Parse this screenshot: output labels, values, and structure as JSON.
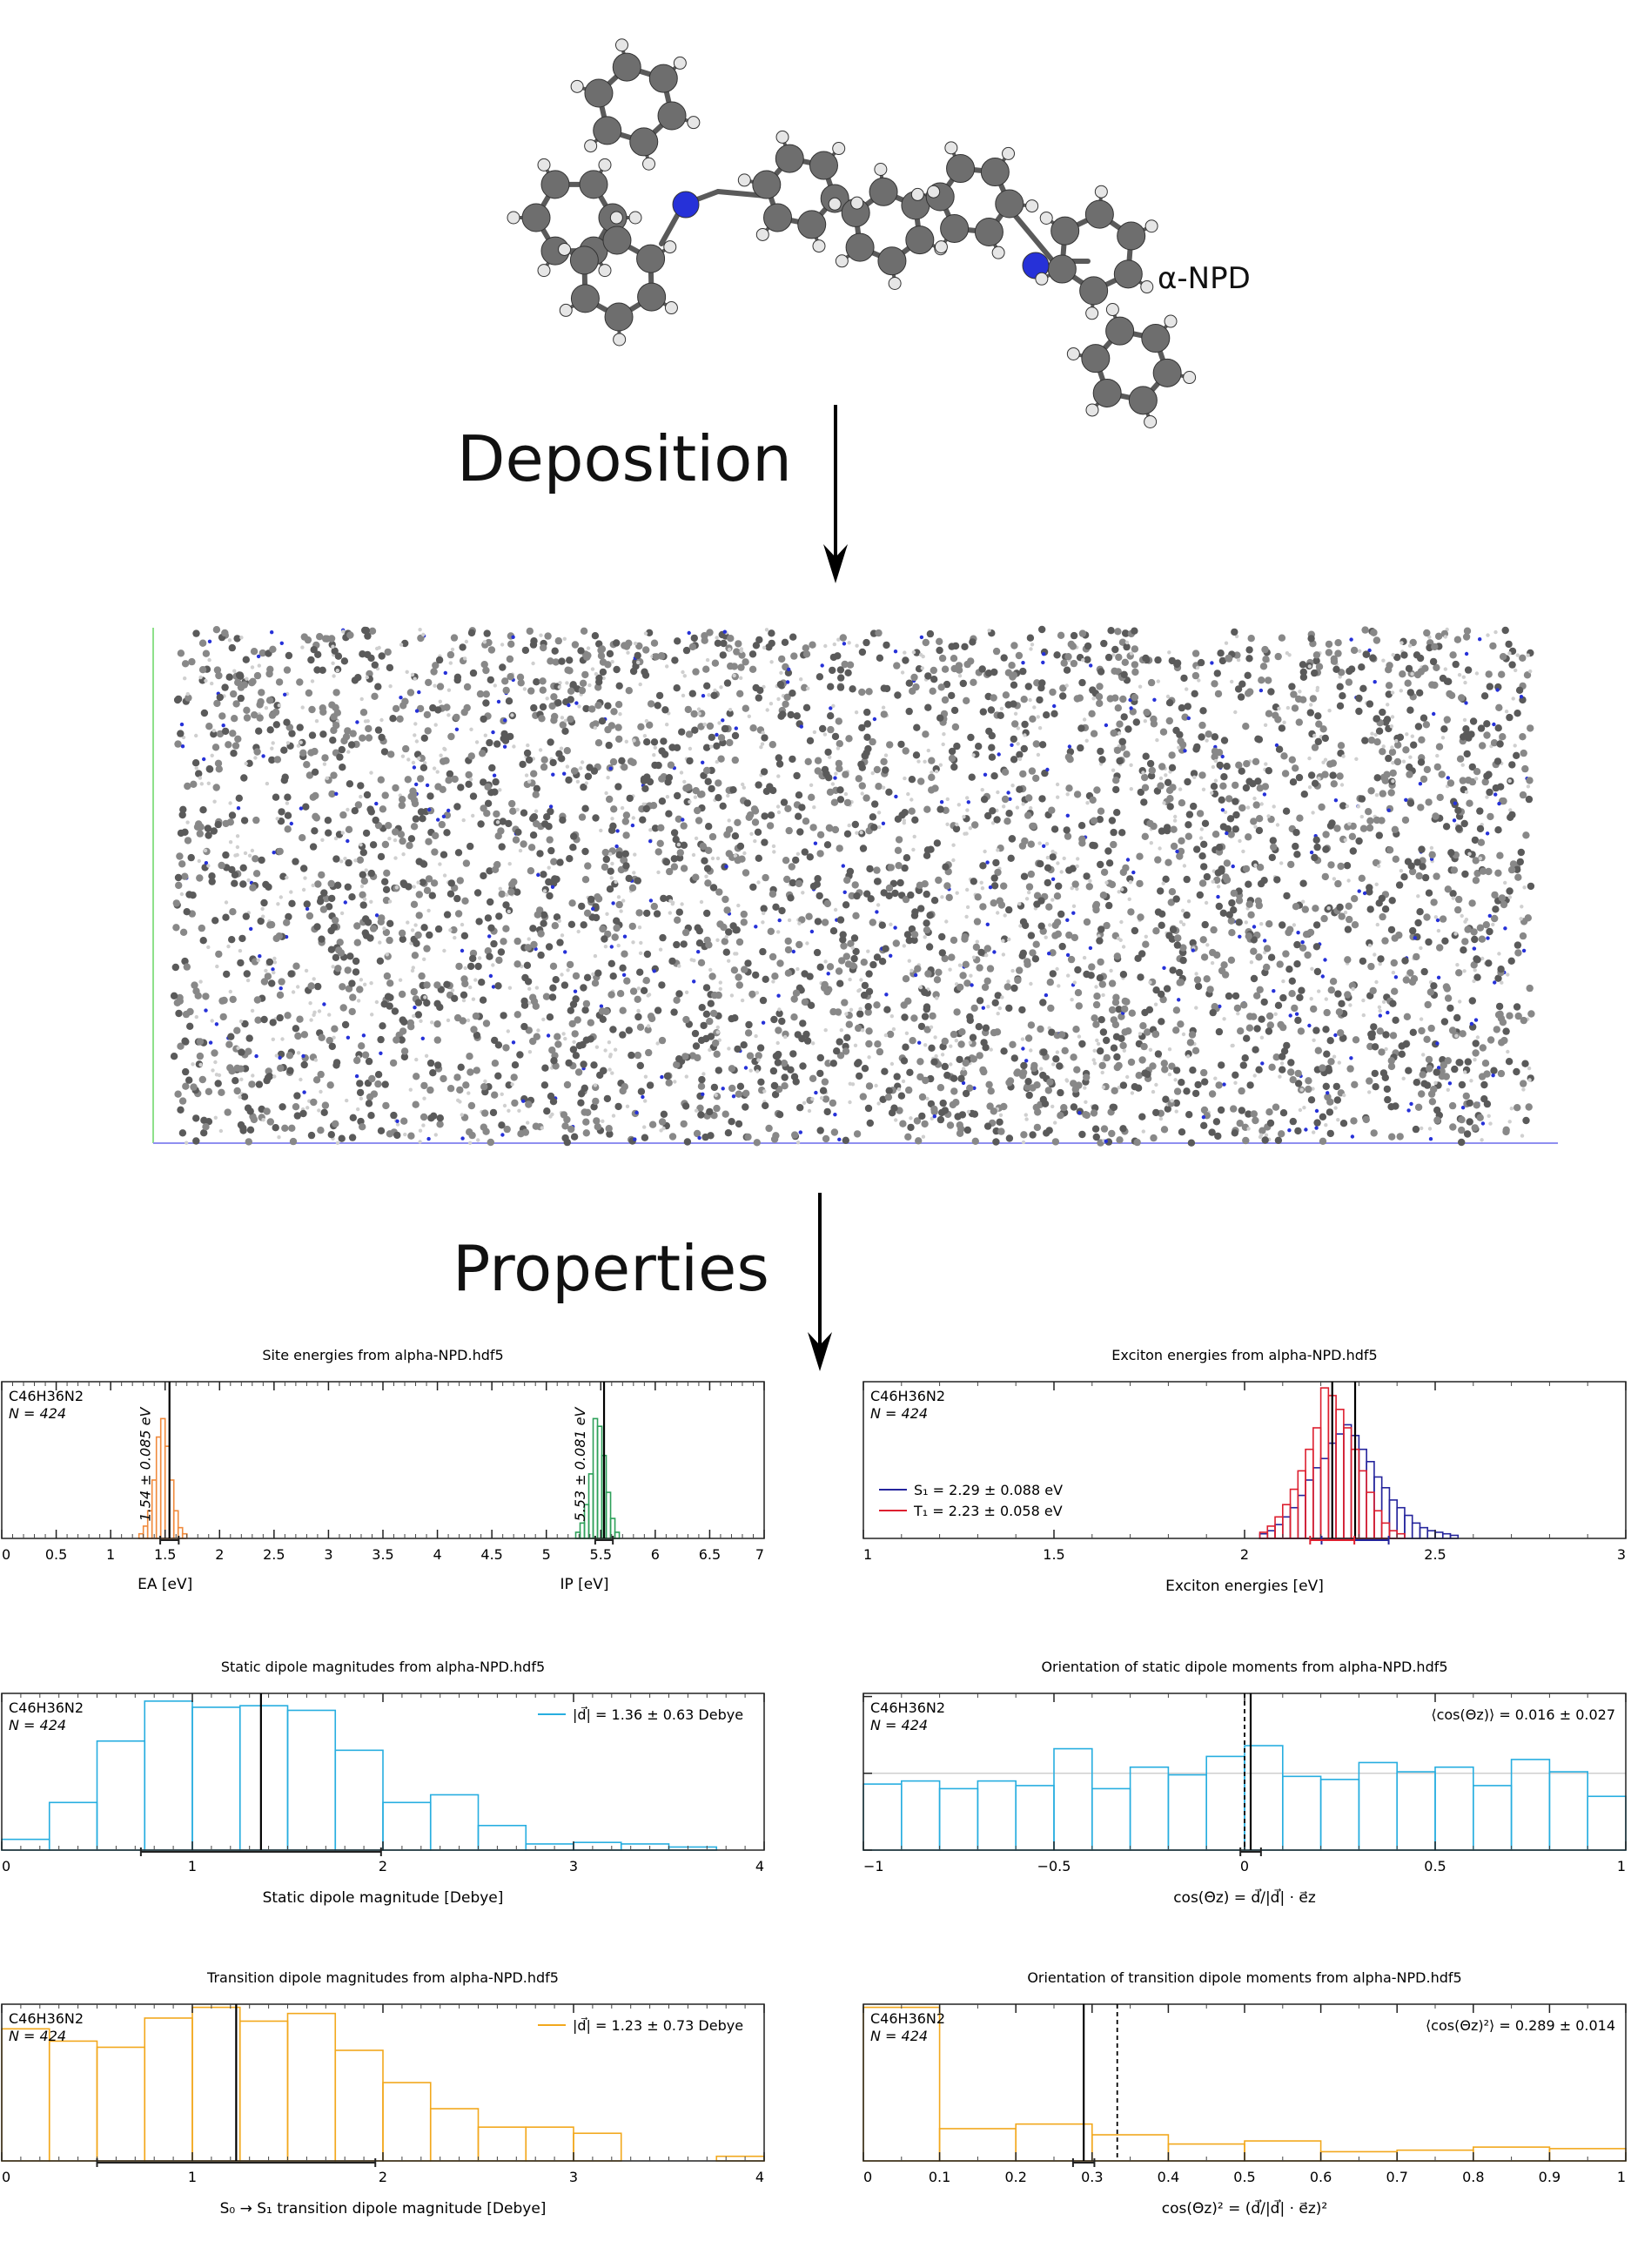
{
  "molecule": {
    "name": "α-NPD"
  },
  "steps": {
    "deposition": "Deposition",
    "properties": "Properties"
  },
  "colors": {
    "carbon": "#6e6e6e",
    "hydrogen": "#e6e6e6",
    "nitrogen": "#2631d8",
    "ea": "#f08a3c",
    "ip": "#2ea05a",
    "singlet": "#24249c",
    "triplet": "#dd1f2f",
    "static_dipole": "#27aee0",
    "transition_dipole": "#f2a81d"
  },
  "chart_data": [
    {
      "id": "site_energies",
      "type": "bar",
      "title": "Site energies from alpha-NPD.hdf5",
      "corner_text": [
        "C46H36N2",
        "N = 424"
      ],
      "xlim": [
        0,
        7
      ],
      "ylim": [
        0,
        1
      ],
      "xticks": [
        "0",
        "0.5",
        "1",
        "1.5",
        "2",
        "2.5",
        "3",
        "3.5",
        "4",
        "4.5",
        "5",
        "5.5",
        "6",
        "6.5",
        "7"
      ],
      "xlabels": [
        {
          "text": "EA [eV]",
          "x": 1.5
        },
        {
          "text": "IP [eV]",
          "x": 5.35
        }
      ],
      "series": [
        {
          "name": "EA",
          "color": "#f08a3c",
          "mean": 1.54,
          "std": 0.085,
          "label": "1.54 ± 0.085 eV",
          "bin_start": 1.26,
          "bin_width": 0.04,
          "values": [
            0.03,
            0.08,
            0.18,
            0.38,
            0.66,
            0.78,
            0.6,
            0.38,
            0.18,
            0.07,
            0.03
          ]
        },
        {
          "name": "IP",
          "color": "#2ea05a",
          "mean": 5.53,
          "std": 0.081,
          "label": "5.53 ± 0.081 eV",
          "bin_start": 5.27,
          "bin_width": 0.04,
          "values": [
            0.04,
            0.1,
            0.22,
            0.42,
            0.78,
            0.73,
            0.54,
            0.3,
            0.13,
            0.04
          ]
        }
      ]
    },
    {
      "id": "exciton_energies",
      "type": "bar",
      "title": "Exciton energies from alpha-NPD.hdf5",
      "corner_text": [
        "C46H36N2",
        "N = 424"
      ],
      "xlim": [
        1,
        3
      ],
      "ylim": [
        0,
        1
      ],
      "xticks": [
        "1",
        "1.5",
        "2",
        "2.5",
        "3"
      ],
      "xlabel": "Exciton energies [eV]",
      "legend": [
        {
          "text": "S₁ = 2.29 ± 0.088 eV",
          "color": "#24249c"
        },
        {
          "text": "T₁ = 2.23 ± 0.058 eV",
          "color": "#dd1f2f"
        }
      ],
      "series": [
        {
          "name": "S₁",
          "color": "#24249c",
          "mean": 2.29,
          "std": 0.088,
          "bin_start": 2.04,
          "bin_width": 0.02,
          "values": [
            0.03,
            0.05,
            0.09,
            0.14,
            0.2,
            0.28,
            0.38,
            0.46,
            0.52,
            0.62,
            0.68,
            0.74,
            0.67,
            0.58,
            0.5,
            0.4,
            0.33,
            0.25,
            0.2,
            0.15,
            0.1,
            0.07,
            0.05,
            0.04,
            0.03,
            0.02
          ]
        },
        {
          "name": "T₁",
          "color": "#dd1f2f",
          "mean": 2.23,
          "std": 0.058,
          "bin_start": 2.04,
          "bin_width": 0.02,
          "values": [
            0.04,
            0.08,
            0.14,
            0.22,
            0.32,
            0.44,
            0.58,
            0.72,
            0.98,
            0.93,
            0.84,
            0.72,
            0.58,
            0.44,
            0.3,
            0.18,
            0.1,
            0.05,
            0.03
          ]
        }
      ]
    },
    {
      "id": "static_dipole_magnitudes",
      "type": "bar",
      "title": "Static dipole magnitudes from alpha-NPD.hdf5",
      "corner_text": [
        "C46H36N2",
        "N = 424"
      ],
      "xlim": [
        0,
        4
      ],
      "ylim": [
        0,
        1
      ],
      "xticks": [
        "0",
        "1",
        "2",
        "3",
        "4"
      ],
      "xlabel": "Static dipole magnitude [Debye]",
      "legend": [
        {
          "text": "|d⃗| = 1.36 ± 0.63 Debye",
          "color": "#27aee0"
        }
      ],
      "series": [
        {
          "name": "|d|",
          "color": "#27aee0",
          "mean": 1.36,
          "std": 0.63,
          "bin_start": 0,
          "bin_width": 0.25,
          "values": [
            0.07,
            0.31,
            0.71,
            0.97,
            0.93,
            0.94,
            0.91,
            0.65,
            0.31,
            0.36,
            0.16,
            0.04,
            0.05,
            0.04,
            0.02
          ]
        }
      ]
    },
    {
      "id": "static_dipole_orientation",
      "type": "bar",
      "title": "Orientation of static dipole moments from alpha-NPD.hdf5",
      "corner_text": [
        "C46H36N2",
        "N = 424"
      ],
      "xlim": [
        -1,
        1
      ],
      "ylim": [
        0,
        1
      ],
      "xticks": [
        "−1",
        "−0.5",
        "0",
        "0.5",
        "1"
      ],
      "yticks": [
        "0",
        "0.5",
        "1"
      ],
      "xlabel": "cos(Θz) = d⃗/|d⃗| · e⃗z",
      "legend": [
        {
          "text": "⟨cos(Θz)⟩ = 0.016 ± 0.027",
          "color": "#27aee0"
        }
      ],
      "series": [
        {
          "name": "cos",
          "color": "#27aee0",
          "mean": 0.016,
          "std": 0.027,
          "reference": 0,
          "bin_start": -1,
          "bin_width": 0.1,
          "values": [
            0.43,
            0.45,
            0.4,
            0.45,
            0.42,
            0.66,
            0.4,
            0.54,
            0.49,
            0.61,
            0.68,
            0.48,
            0.46,
            0.57,
            0.51,
            0.54,
            0.42,
            0.59,
            0.51,
            0.35
          ]
        }
      ]
    },
    {
      "id": "transition_dipole_magnitudes",
      "type": "bar",
      "title": "Transition dipole magnitudes from alpha-NPD.hdf5",
      "corner_text": [
        "C46H36N2",
        "N = 424"
      ],
      "xlim": [
        0,
        4
      ],
      "ylim": [
        0,
        1
      ],
      "xticks": [
        "0",
        "1",
        "2",
        "3",
        "4"
      ],
      "xlabel": "S₀ → S₁ transition dipole magnitude [Debye]",
      "legend": [
        {
          "text": "|d⃗| = 1.23 ± 0.73 Debye",
          "color": "#f2a81d"
        }
      ],
      "series": [
        {
          "name": "|d|",
          "color": "#f2a81d",
          "mean": 1.23,
          "std": 0.73,
          "bin_start": 0,
          "bin_width": 0.25,
          "values": [
            0.86,
            0.78,
            0.74,
            0.93,
            1.0,
            0.91,
            0.96,
            0.72,
            0.51,
            0.34,
            0.22,
            0.22,
            0.18,
            0.0,
            0.0,
            0.03
          ]
        }
      ]
    },
    {
      "id": "transition_dipole_orientation",
      "type": "bar",
      "title": "Orientation of transition dipole moments from alpha-NPD.hdf5",
      "corner_text": [
        "C46H36N2",
        "N = 424"
      ],
      "xlim": [
        0,
        1
      ],
      "ylim": [
        0,
        1
      ],
      "xticks": [
        "0",
        "0.1",
        "0.2",
        "0.3",
        "0.4",
        "0.5",
        "0.6",
        "0.7",
        "0.8",
        "0.9",
        "1"
      ],
      "xlabel": "cos(Θz)² = (d⃗/|d⃗| · e⃗z)²",
      "legend": [
        {
          "text": "⟨cos(Θz)²⟩ = 0.289 ± 0.014",
          "color": "#f2a81d"
        }
      ],
      "series": [
        {
          "name": "cos²",
          "color": "#f2a81d",
          "mean": 0.289,
          "std": 0.014,
          "reference": 0.333,
          "bin_start": 0,
          "bin_width": 0.1,
          "values": [
            1.0,
            0.21,
            0.24,
            0.17,
            0.11,
            0.13,
            0.06,
            0.07,
            0.09,
            0.08
          ]
        }
      ]
    }
  ]
}
